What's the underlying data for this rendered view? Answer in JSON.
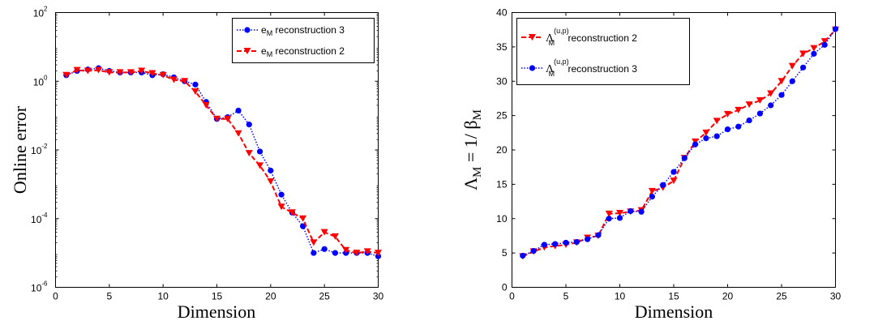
{
  "chart_data": [
    {
      "type": "line",
      "xlabel": "Dimension",
      "ylabel": "Online error",
      "yscale": "log",
      "xlim": [
        0,
        30
      ],
      "ylim": [
        1e-06,
        100
      ],
      "x_ticks": [
        "0",
        "5",
        "10",
        "15",
        "20",
        "25",
        "30"
      ],
      "y_ticks": [
        {
          "base": "10",
          "exp": "-6"
        },
        {
          "base": "10",
          "exp": "-4"
        },
        {
          "base": "10",
          "exp": "-2"
        },
        {
          "base": "10",
          "exp": "0"
        },
        {
          "base": "10",
          "exp": "2"
        }
      ],
      "grid": false,
      "legend_position": "top-right",
      "x": [
        1,
        2,
        3,
        4,
        5,
        6,
        7,
        8,
        9,
        10,
        11,
        12,
        13,
        14,
        15,
        16,
        17,
        18,
        19,
        20,
        21,
        22,
        23,
        24,
        25,
        26,
        27,
        28,
        29,
        30
      ],
      "series": [
        {
          "legend": {
            "main": "e",
            "sub": "M",
            "rest": " reconstruction 3"
          },
          "color": "#0000ff",
          "line_style": "dotted",
          "marker": "circle",
          "values": [
            1.5,
            2.0,
            2.2,
            2.4,
            2.0,
            1.8,
            1.8,
            1.8,
            1.5,
            1.6,
            1.3,
            1.0,
            0.8,
            0.25,
            0.08,
            0.09,
            0.14,
            0.055,
            0.009,
            0.0025,
            0.0005,
            0.00015,
            6e-05,
            1e-05,
            1.3e-05,
            1e-05,
            1e-05,
            1e-05,
            1e-05,
            8e-06
          ]
        },
        {
          "legend": {
            "main": "e",
            "sub": "M",
            "rest": " reconstruction 2"
          },
          "color": "#ff0000",
          "line_style": "dashed",
          "marker": "triangle-down",
          "values": [
            1.5,
            2.1,
            2.0,
            2.1,
            1.8,
            1.8,
            1.8,
            2.0,
            1.7,
            1.5,
            1.1,
            1.0,
            0.5,
            0.2,
            0.08,
            0.08,
            0.03,
            0.008,
            0.0035,
            0.0012,
            0.00022,
            0.00015,
            0.0001,
            2e-05,
            4e-05,
            3e-05,
            1.2e-05,
            1e-05,
            1.1e-05,
            1e-05
          ]
        }
      ]
    },
    {
      "type": "line",
      "xlabel": "Dimension",
      "ylabel": {
        "main": "Λ",
        "sub": "M",
        "mid": " = 1/ β",
        "sub2": "M"
      },
      "xlim": [
        0,
        30
      ],
      "ylim": [
        0,
        40
      ],
      "x_ticks": [
        "0",
        "5",
        "10",
        "15",
        "20",
        "25",
        "30"
      ],
      "y_ticks": [
        "0",
        "5",
        "10",
        "15",
        "20",
        "25",
        "30",
        "35",
        "40"
      ],
      "grid": false,
      "legend_position": "top-left",
      "x": [
        1,
        2,
        3,
        4,
        5,
        6,
        7,
        8,
        9,
        10,
        11,
        12,
        13,
        14,
        15,
        16,
        17,
        18,
        19,
        20,
        21,
        22,
        23,
        24,
        25,
        26,
        27,
        28,
        29,
        30
      ],
      "series": [
        {
          "legend": {
            "main": "Λ",
            "sup": "(u,p)",
            "sub": "M",
            "rest": " reconstruction 2"
          },
          "color": "#ff0000",
          "line_style": "dashed",
          "marker": "triangle-down",
          "values": [
            4.5,
            5.2,
            5.8,
            6.0,
            6.2,
            6.5,
            7.2,
            7.5,
            10.7,
            10.8,
            11.0,
            11.2,
            14.0,
            14.5,
            15.5,
            18.8,
            21.2,
            22.5,
            24.2,
            25.2,
            25.8,
            26.6,
            27.2,
            28.2,
            30.0,
            32.2,
            34.0,
            34.8,
            35.8,
            37.5
          ]
        },
        {
          "legend": {
            "main": "Λ",
            "sup": "(u,p)",
            "sub": "M",
            "rest": " reconstruction 3"
          },
          "color": "#0000ff",
          "line_style": "dotted",
          "marker": "circle",
          "values": [
            4.6,
            5.3,
            6.2,
            6.3,
            6.5,
            6.6,
            7.0,
            7.6,
            10.0,
            10.1,
            11.1,
            11.0,
            13.2,
            14.9,
            16.8,
            18.8,
            20.8,
            21.7,
            22.0,
            23.0,
            23.4,
            24.3,
            25.3,
            26.5,
            28.0,
            30.0,
            32.0,
            34.0,
            35.3,
            37.6
          ]
        }
      ]
    }
  ]
}
